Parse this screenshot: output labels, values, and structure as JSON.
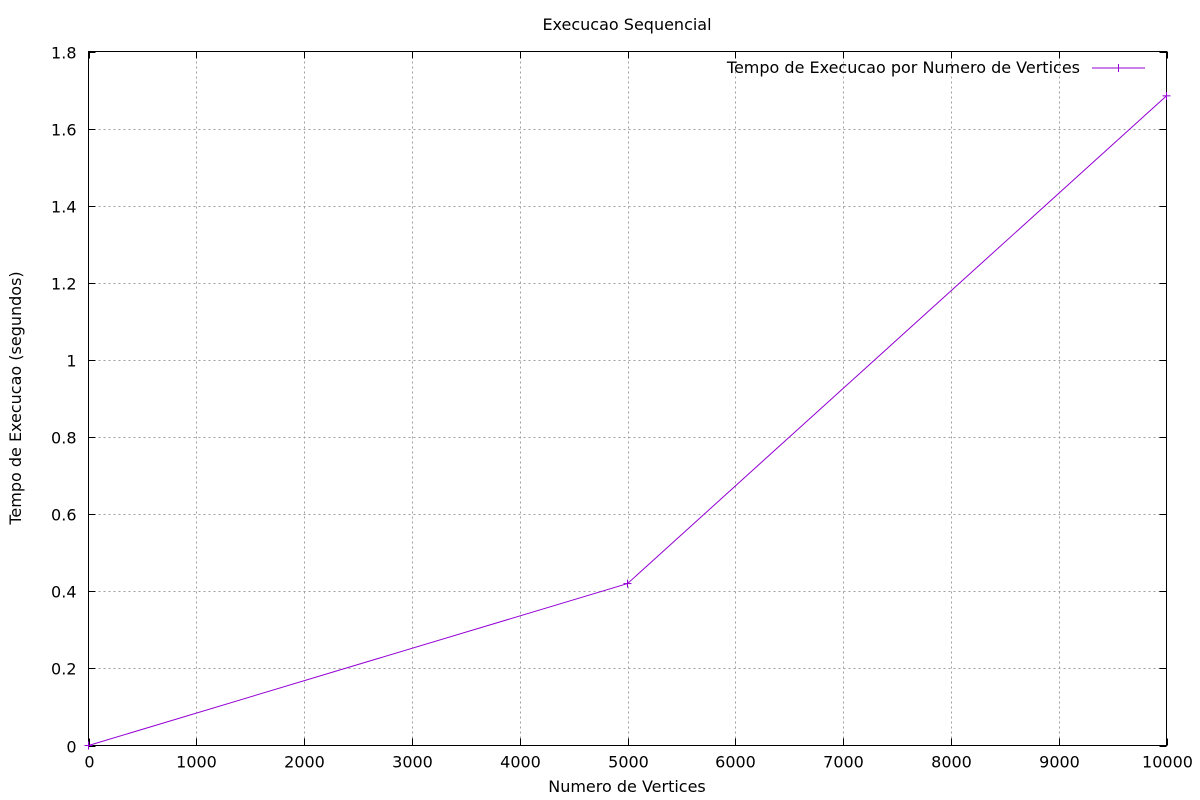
{
  "chart_data": {
    "type": "line",
    "title": "Execucao Sequencial",
    "xlabel": "Numero de Vertices",
    "ylabel": "Tempo de Execucao (segundos)",
    "xlim": [
      0,
      10000
    ],
    "ylim": [
      0,
      1.8
    ],
    "x_ticks": [
      0,
      1000,
      2000,
      3000,
      4000,
      5000,
      6000,
      7000,
      8000,
      9000,
      10000
    ],
    "x_tick_labels": [
      "0",
      "1000",
      "2000",
      "3000",
      "4000",
      "5000",
      "6000",
      "7000",
      "8000",
      "9000",
      "10000"
    ],
    "y_ticks": [
      0,
      0.2,
      0.4,
      0.6,
      0.8,
      1.0,
      1.2,
      1.4,
      1.6,
      1.8
    ],
    "y_tick_labels": [
      "0",
      "0.2",
      "0.4",
      "0.6",
      "0.8",
      "1",
      "1.2",
      "1.4",
      "1.6",
      "1.8"
    ],
    "grid": true,
    "legend_position": "top-right",
    "series": [
      {
        "name": "Tempo de Execucao por Numero de Vertices",
        "color": "#9400d3",
        "marker": "plus",
        "x": [
          0,
          5000,
          10000
        ],
        "y": [
          0,
          0.42,
          1.685
        ]
      }
    ]
  }
}
